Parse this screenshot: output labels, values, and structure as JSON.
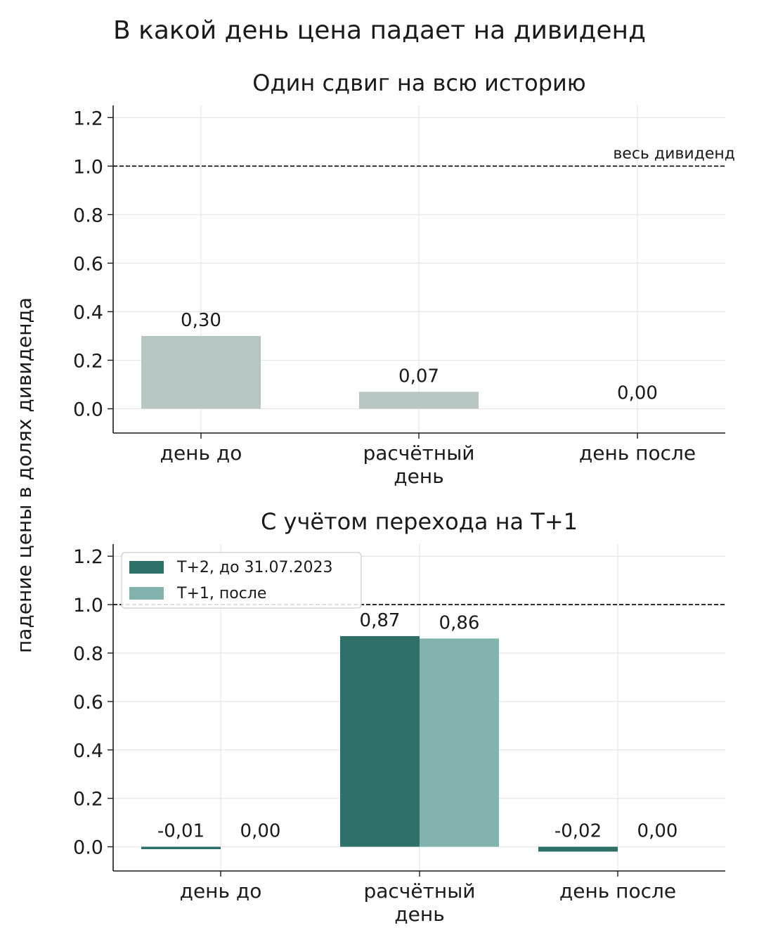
{
  "figure": {
    "title": "В какой день цена падает на дивиденд",
    "ylabel": "падение цены в долях дивиденда"
  },
  "colors": {
    "single": "#b7c6c2",
    "t2": "#2f7068",
    "t1": "#82b3ac",
    "reference": "#000000",
    "grid": "#e6e6e6"
  },
  "chart_data": [
    {
      "type": "bar",
      "title": "Один сдвиг на всю историю",
      "categories": [
        "день до",
        "расчётный день",
        "день после"
      ],
      "category_lines": [
        [
          "день до"
        ],
        [
          "расчётный",
          "день"
        ],
        [
          "день после"
        ]
      ],
      "series": [
        {
          "values": [
            0.3,
            0.07,
            0.0
          ],
          "labels": [
            "0,30",
            "0,07",
            "0,00"
          ]
        }
      ],
      "ylim": [
        -0.1,
        1.25
      ],
      "yticks": [
        0.0,
        0.2,
        0.4,
        0.6,
        0.8,
        1.0,
        1.2
      ],
      "ytick_labels": [
        "0.0",
        "0.2",
        "0.4",
        "0.6",
        "0.8",
        "1.0",
        "1.2"
      ],
      "reference_line": {
        "y": 1.0,
        "label": "весь дивиденд"
      },
      "grid": true,
      "legend": null
    },
    {
      "type": "bar",
      "title": "С учётом перехода на T+1",
      "categories": [
        "день до",
        "расчётный день",
        "день после"
      ],
      "category_lines": [
        [
          "день до"
        ],
        [
          "расчётный",
          "день"
        ],
        [
          "день после"
        ]
      ],
      "series": [
        {
          "name": "T+2, до 31.07.2023",
          "values": [
            -0.01,
            0.87,
            -0.02
          ],
          "labels": [
            "-0,01",
            "0,87",
            "-0,02"
          ]
        },
        {
          "name": "T+1, после",
          "values": [
            0.0,
            0.86,
            0.0
          ],
          "labels": [
            "0,00",
            "0,86",
            "0,00"
          ]
        }
      ],
      "ylim": [
        -0.1,
        1.25
      ],
      "yticks": [
        0.0,
        0.2,
        0.4,
        0.6,
        0.8,
        1.0,
        1.2
      ],
      "ytick_labels": [
        "0.0",
        "0.2",
        "0.4",
        "0.6",
        "0.8",
        "1.0",
        "1.2"
      ],
      "reference_line": {
        "y": 1.0,
        "label": ""
      },
      "grid": true,
      "legend": "top-left"
    }
  ]
}
